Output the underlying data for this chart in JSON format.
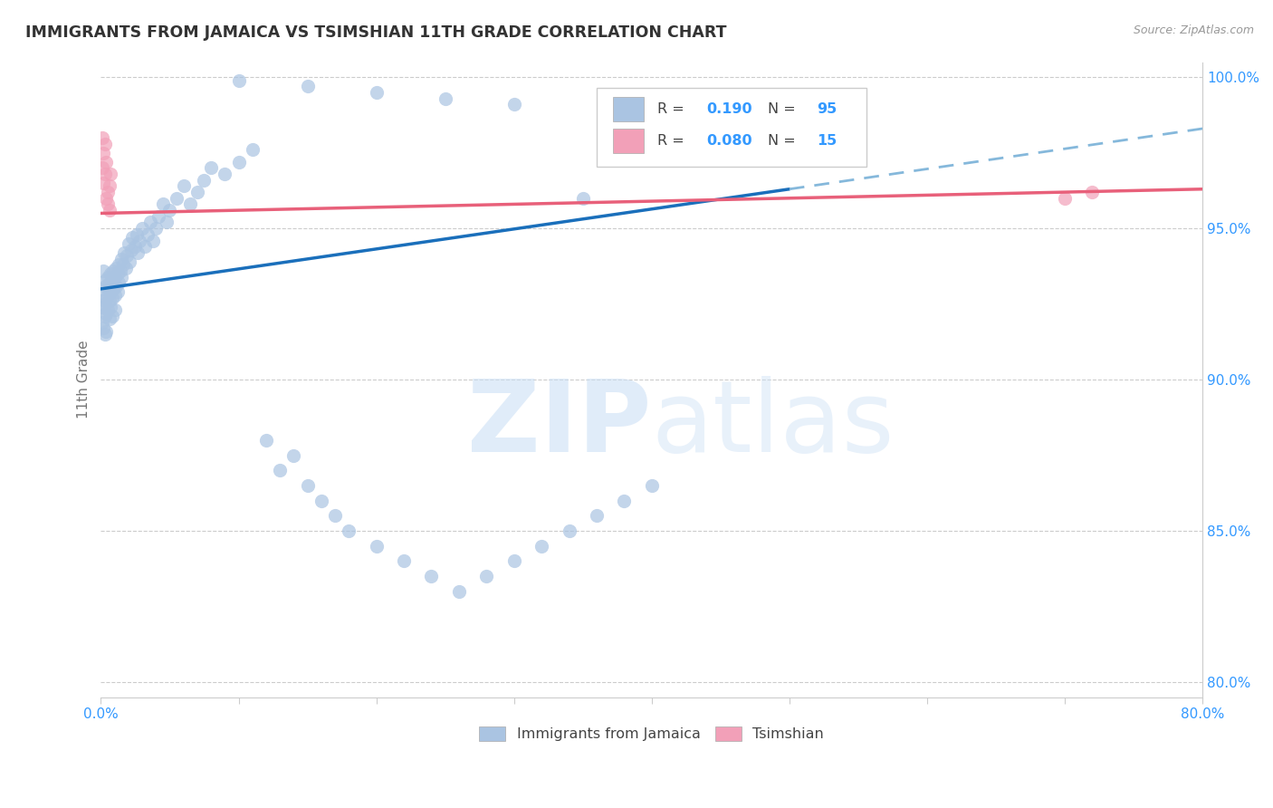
{
  "title": "IMMIGRANTS FROM JAMAICA VS TSIMSHIAN 11TH GRADE CORRELATION CHART",
  "source_text": "Source: ZipAtlas.com",
  "ylabel": "11th Grade",
  "r_jamaica": 0.19,
  "n_jamaica": 95,
  "r_tsimshian": 0.08,
  "n_tsimshian": 15,
  "xlim": [
    0.0,
    0.8
  ],
  "ylim": [
    0.795,
    1.005
  ],
  "yticks": [
    0.8,
    0.85,
    0.9,
    0.95,
    1.0
  ],
  "ytick_labels": [
    "80.0%",
    "85.0%",
    "90.0%",
    "95.0%",
    "100.0%"
  ],
  "xticks": [
    0.0,
    0.1,
    0.2,
    0.3,
    0.4,
    0.5,
    0.6,
    0.7,
    0.8
  ],
  "xtick_labels": [
    "0.0%",
    "",
    "",
    "",
    "",
    "",
    "",
    "",
    "80.0%"
  ],
  "color_jamaica": "#aac4e2",
  "color_tsimshian": "#f2a0b8",
  "trend_jamaica_color": "#1a6fbb",
  "trend_jamaica_dash_color": "#85b8db",
  "trend_tsimshian_color": "#e8607a",
  "watermark_zip": "ZIP",
  "watermark_atlas": "atlas",
  "jamaica_x": [
    0.001,
    0.001,
    0.001,
    0.002,
    0.002,
    0.002,
    0.003,
    0.003,
    0.003,
    0.003,
    0.004,
    0.004,
    0.004,
    0.004,
    0.005,
    0.005,
    0.005,
    0.006,
    0.006,
    0.006,
    0.007,
    0.007,
    0.007,
    0.008,
    0.008,
    0.008,
    0.009,
    0.009,
    0.01,
    0.01,
    0.01,
    0.011,
    0.011,
    0.012,
    0.012,
    0.013,
    0.013,
    0.014,
    0.015,
    0.015,
    0.016,
    0.017,
    0.018,
    0.019,
    0.02,
    0.021,
    0.022,
    0.023,
    0.025,
    0.026,
    0.027,
    0.028,
    0.03,
    0.032,
    0.034,
    0.036,
    0.038,
    0.04,
    0.042,
    0.045,
    0.048,
    0.05,
    0.055,
    0.06,
    0.065,
    0.07,
    0.075,
    0.08,
    0.09,
    0.1,
    0.11,
    0.12,
    0.13,
    0.14,
    0.15,
    0.16,
    0.17,
    0.18,
    0.2,
    0.22,
    0.24,
    0.26,
    0.28,
    0.3,
    0.32,
    0.34,
    0.35,
    0.36,
    0.38,
    0.4,
    0.1,
    0.15,
    0.2,
    0.25,
    0.3
  ],
  "jamaica_y": [
    0.93,
    0.924,
    0.919,
    0.936,
    0.925,
    0.917,
    0.931,
    0.926,
    0.921,
    0.915,
    0.933,
    0.927,
    0.922,
    0.916,
    0.934,
    0.928,
    0.923,
    0.932,
    0.926,
    0.92,
    0.935,
    0.929,
    0.924,
    0.933,
    0.927,
    0.921,
    0.936,
    0.93,
    0.934,
    0.928,
    0.923,
    0.937,
    0.931,
    0.935,
    0.929,
    0.938,
    0.932,
    0.936,
    0.94,
    0.934,
    0.938,
    0.942,
    0.937,
    0.941,
    0.945,
    0.939,
    0.943,
    0.947,
    0.944,
    0.948,
    0.942,
    0.946,
    0.95,
    0.944,
    0.948,
    0.952,
    0.946,
    0.95,
    0.954,
    0.958,
    0.952,
    0.956,
    0.96,
    0.964,
    0.958,
    0.962,
    0.966,
    0.97,
    0.968,
    0.972,
    0.976,
    0.88,
    0.87,
    0.875,
    0.865,
    0.86,
    0.855,
    0.85,
    0.845,
    0.84,
    0.835,
    0.83,
    0.835,
    0.84,
    0.845,
    0.85,
    0.96,
    0.855,
    0.86,
    0.865,
    0.999,
    0.997,
    0.995,
    0.993,
    0.991
  ],
  "tsimshian_x": [
    0.001,
    0.001,
    0.002,
    0.002,
    0.003,
    0.003,
    0.004,
    0.004,
    0.005,
    0.005,
    0.006,
    0.006,
    0.007,
    0.7,
    0.72
  ],
  "tsimshian_y": [
    0.97,
    0.98,
    0.965,
    0.975,
    0.968,
    0.978,
    0.96,
    0.972,
    0.962,
    0.958,
    0.964,
    0.956,
    0.968,
    0.96,
    0.962
  ],
  "blue_trend_x0": 0.0,
  "blue_trend_y0": 0.93,
  "blue_trend_x1": 0.5,
  "blue_trend_y1": 0.963,
  "blue_trend_x2": 0.8,
  "blue_trend_y2": 0.983,
  "pink_trend_x0": 0.0,
  "pink_trend_y0": 0.955,
  "pink_trend_x1": 0.8,
  "pink_trend_y1": 0.963
}
